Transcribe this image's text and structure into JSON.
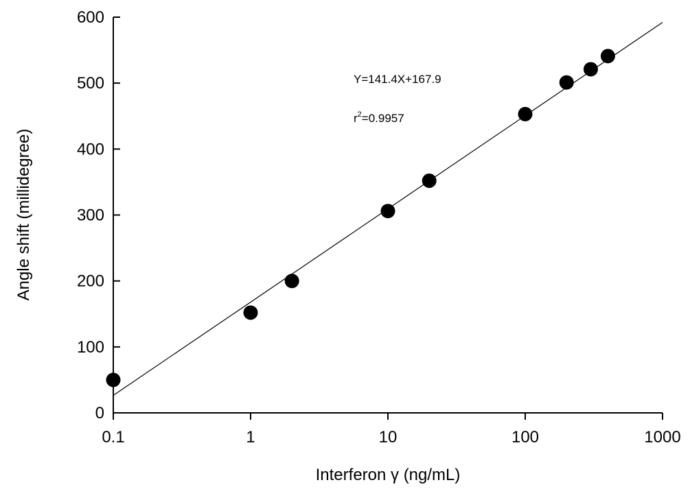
{
  "chart_data": {
    "type": "scatter",
    "xlabel": "Interferon γ   (ng/mL)",
    "ylabel": "Angle shift (millidegree)",
    "x_scale": "log",
    "xlim": [
      0.1,
      1000
    ],
    "ylim": [
      0,
      600
    ],
    "x_ticks": [
      "0.1",
      "1",
      "10",
      "100",
      "1000"
    ],
    "y_ticks": [
      "0",
      "100",
      "200",
      "300",
      "400",
      "500",
      "600"
    ],
    "grid": false,
    "series": [
      {
        "points": [
          {
            "x": 0.1,
            "y": 50
          },
          {
            "x": 1,
            "y": 152
          },
          {
            "x": 2,
            "y": 200
          },
          {
            "x": 10,
            "y": 306
          },
          {
            "x": 20,
            "y": 352
          },
          {
            "x": 100,
            "y": 453
          },
          {
            "x": 200,
            "y": 501
          },
          {
            "x": 300,
            "y": 521
          },
          {
            "x": 400,
            "y": 541
          }
        ]
      }
    ],
    "fit_line": {
      "slope": 141.4,
      "intercept": 167.9
    },
    "annotations": {
      "equation": "Y=141.4X+167.9",
      "r2_prefix": "r",
      "r2_sup": "2",
      "r2_value": "=0.9957"
    }
  }
}
